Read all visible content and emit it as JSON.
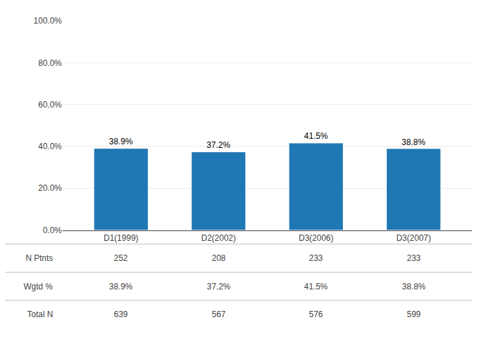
{
  "chart_data": {
    "type": "bar",
    "categories": [
      "D1(1999)",
      "D2(2002)",
      "D3(2006)",
      "D3(2007)"
    ],
    "values": [
      38.9,
      37.2,
      41.5,
      38.8
    ],
    "value_labels": [
      "38.9%",
      "37.2%",
      "41.5%",
      "38.8%"
    ],
    "data_labels": true,
    "ylim": [
      0,
      100
    ],
    "yticks": [
      {
        "value": 0,
        "label": "0.0%"
      },
      {
        "value": 20,
        "label": "20.0%"
      },
      {
        "value": 40,
        "label": "40.0%"
      },
      {
        "value": 60,
        "label": "60.0%"
      },
      {
        "value": 80,
        "label": "80.0%"
      },
      {
        "value": 100,
        "label": "100.0%"
      }
    ],
    "grid": true,
    "table": {
      "rows": [
        {
          "name": "N Ptnts",
          "values": [
            252,
            208,
            233,
            233
          ]
        },
        {
          "name": "Wgtd %",
          "values": [
            38.9,
            37.2,
            41.5,
            38.8
          ],
          "value_labels": [
            "38.9%",
            "37.2%",
            "41.5%",
            "38.8%"
          ]
        },
        {
          "name": "Total N",
          "values": [
            639,
            567,
            576,
            599
          ]
        }
      ]
    }
  }
}
